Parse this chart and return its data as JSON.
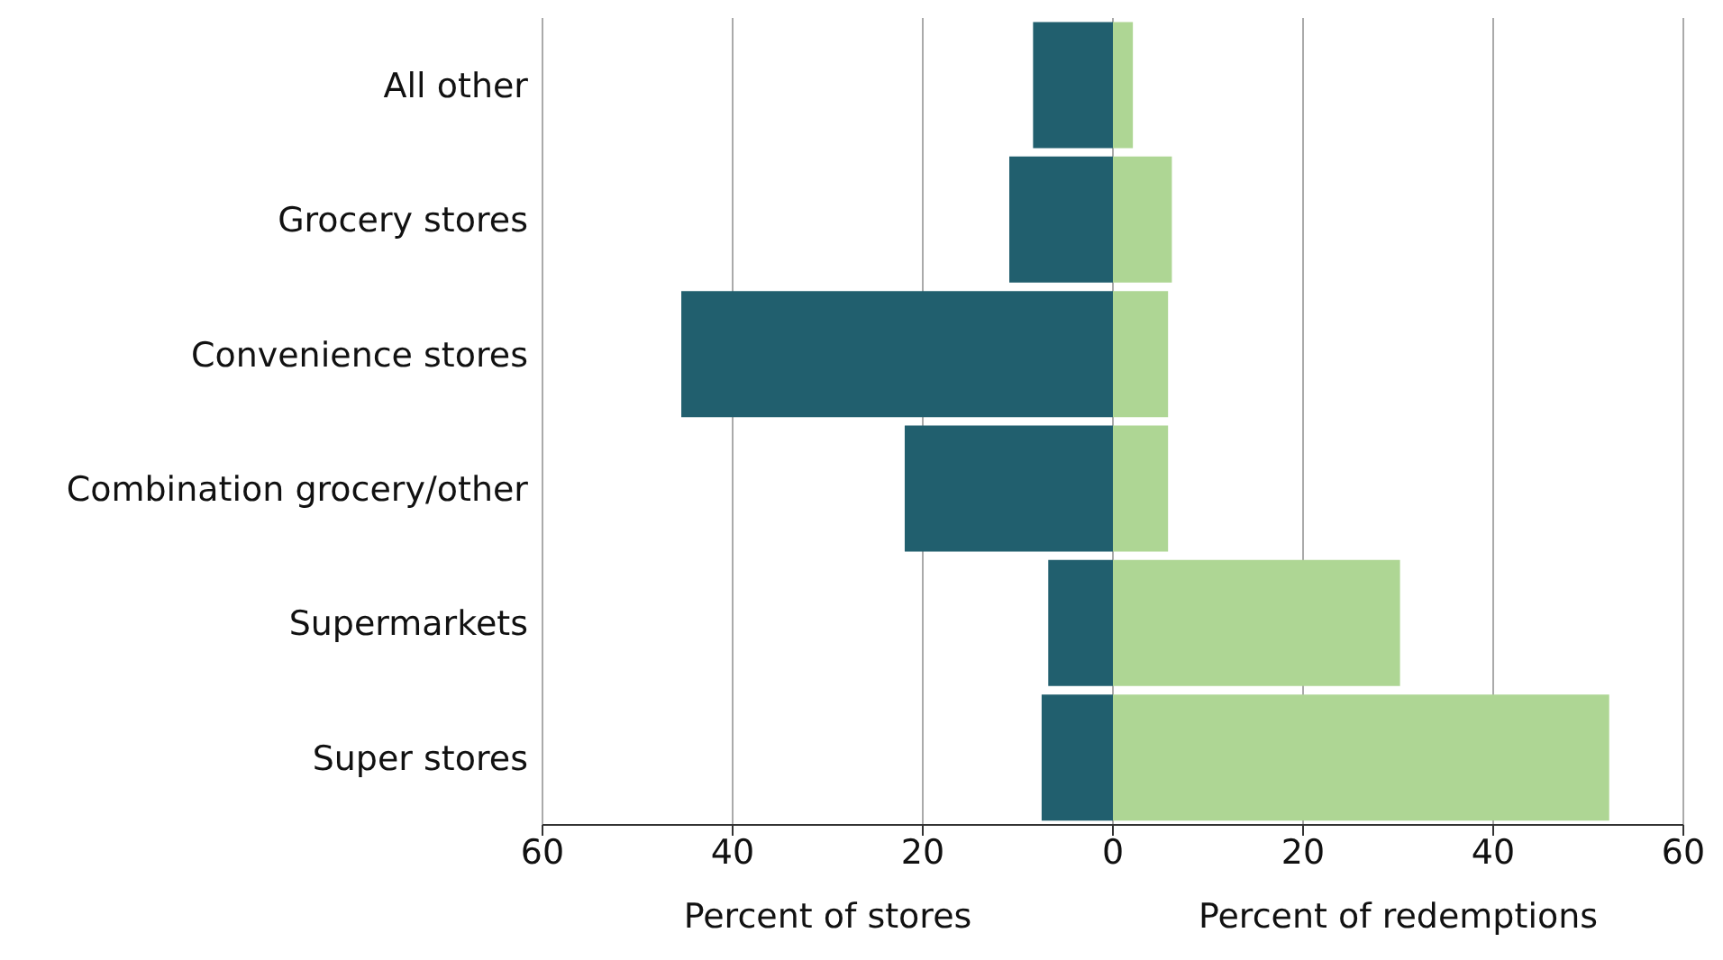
{
  "chart_data": {
    "type": "bar",
    "orientation": "horizontal",
    "stacked": true,
    "categories": [
      "All other",
      "Grocery stores",
      "Convenience stores",
      "Combination grocery/other",
      "Supermarkets",
      "Super stores"
    ],
    "series": [
      {
        "color": "#215f6e",
        "values": [
          -8.4,
          -10.9,
          -45.4,
          -21.9,
          -6.8,
          -7.5
        ]
      },
      {
        "color": "#aed694",
        "values": [
          2.1,
          6.2,
          5.8,
          5.8,
          30.2,
          52.2
        ]
      }
    ],
    "xlim": [
      -60,
      60
    ],
    "xticks": [
      {
        "value": -60,
        "label": "60"
      },
      {
        "value": -40,
        "label": "40"
      },
      {
        "value": -20,
        "label": "20"
      },
      0,
      20,
      40,
      60
    ],
    "xlabel": "Percent of stores",
    "annotations": [
      "Percent of redemptions"
    ],
    "grid": "x",
    "legend": false
  }
}
